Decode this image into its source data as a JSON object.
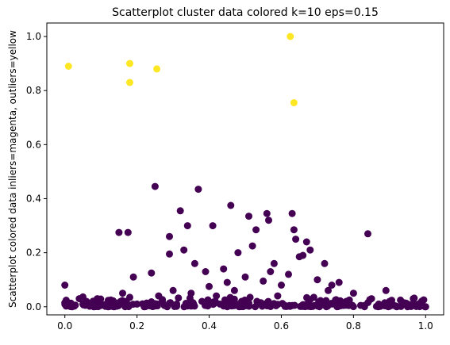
{
  "chart_data": {
    "type": "scatter",
    "title": "Scatterplot cluster data colored k=10 eps=0.15",
    "xlabel": "",
    "ylabel": "Scatterplot colored data inliers=magenta, outliers=yellow",
    "xlim": [
      -0.05,
      1.05
    ],
    "ylim": [
      -0.03,
      1.05
    ],
    "xticks": [
      "0.0",
      "0.2",
      "0.4",
      "0.6",
      "0.8",
      "1.0"
    ],
    "yticks": [
      "0.0",
      "0.2",
      "0.4",
      "0.6",
      "0.8",
      "1.0"
    ],
    "grid": false,
    "legend": "none",
    "series": [
      {
        "color": "#440154",
        "points": [
          [
            0.0,
            0.08
          ],
          [
            0.0,
            0.015
          ],
          [
            0.01,
            0.005
          ],
          [
            0.02,
            0.0
          ],
          [
            0.04,
            0.03
          ],
          [
            0.05,
            0.01
          ],
          [
            0.06,
            0.02
          ],
          [
            0.08,
            0.0
          ],
          [
            0.09,
            0.03
          ],
          [
            0.1,
            0.005
          ],
          [
            0.12,
            0.0
          ],
          [
            0.14,
            0.01
          ],
          [
            0.15,
            0.275
          ],
          [
            0.16,
            0.05
          ],
          [
            0.17,
            0.02
          ],
          [
            0.175,
            0.275
          ],
          [
            0.18,
            0.035
          ],
          [
            0.19,
            0.11
          ],
          [
            0.2,
            0.01
          ],
          [
            0.22,
            0.0
          ],
          [
            0.24,
            0.125
          ],
          [
            0.25,
            0.445
          ],
          [
            0.26,
            0.04
          ],
          [
            0.27,
            0.02
          ],
          [
            0.29,
            0.26
          ],
          [
            0.29,
            0.195
          ],
          [
            0.3,
            0.06
          ],
          [
            0.31,
            0.01
          ],
          [
            0.32,
            0.355
          ],
          [
            0.33,
            0.21
          ],
          [
            0.34,
            0.3
          ],
          [
            0.35,
            0.05
          ],
          [
            0.36,
            0.16
          ],
          [
            0.37,
            0.435
          ],
          [
            0.38,
            0.02
          ],
          [
            0.39,
            0.13
          ],
          [
            0.4,
            0.075
          ],
          [
            0.41,
            0.3
          ],
          [
            0.42,
            0.04
          ],
          [
            0.43,
            0.01
          ],
          [
            0.44,
            0.14
          ],
          [
            0.45,
            0.09
          ],
          [
            0.46,
            0.375
          ],
          [
            0.47,
            0.06
          ],
          [
            0.48,
            0.2
          ],
          [
            0.49,
            0.02
          ],
          [
            0.5,
            0.11
          ],
          [
            0.51,
            0.335
          ],
          [
            0.52,
            0.225
          ],
          [
            0.53,
            0.285
          ],
          [
            0.54,
            0.015
          ],
          [
            0.55,
            0.095
          ],
          [
            0.56,
            0.345
          ],
          [
            0.565,
            0.32
          ],
          [
            0.57,
            0.13
          ],
          [
            0.58,
            0.16
          ],
          [
            0.59,
            0.04
          ],
          [
            0.6,
            0.08
          ],
          [
            0.61,
            0.005
          ],
          [
            0.62,
            0.12
          ],
          [
            0.63,
            0.345
          ],
          [
            0.635,
            0.285
          ],
          [
            0.64,
            0.25
          ],
          [
            0.65,
            0.185
          ],
          [
            0.66,
            0.19
          ],
          [
            0.67,
            0.24
          ],
          [
            0.68,
            0.21
          ],
          [
            0.69,
            0.035
          ],
          [
            0.7,
            0.1
          ],
          [
            0.72,
            0.16
          ],
          [
            0.73,
            0.06
          ],
          [
            0.74,
            0.08
          ],
          [
            0.75,
            0.01
          ],
          [
            0.76,
            0.09
          ],
          [
            0.78,
            0.02
          ],
          [
            0.8,
            0.05
          ],
          [
            0.82,
            0.005
          ],
          [
            0.84,
            0.27
          ],
          [
            0.85,
            0.03
          ],
          [
            0.87,
            0.01
          ],
          [
            0.89,
            0.06
          ],
          [
            0.9,
            0.02
          ],
          [
            0.92,
            0.0
          ],
          [
            0.94,
            0.015
          ],
          [
            0.96,
            0.005
          ],
          [
            0.98,
            0.01
          ],
          [
            1.0,
            0.0
          ]
        ]
      },
      {
        "color": "#fde725",
        "points": [
          [
            0.01,
            0.89
          ],
          [
            0.18,
            0.9
          ],
          [
            0.18,
            0.83
          ],
          [
            0.255,
            0.88
          ],
          [
            0.625,
            1.0
          ],
          [
            0.635,
            0.755
          ]
        ]
      }
    ]
  }
}
